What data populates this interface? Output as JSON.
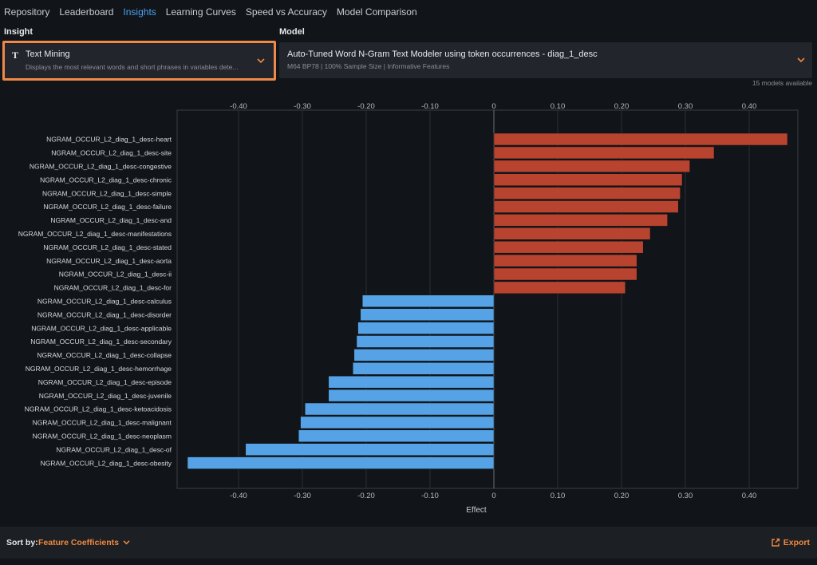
{
  "nav": {
    "items": [
      "Repository",
      "Leaderboard",
      "Insights",
      "Learning Curves",
      "Speed vs Accuracy",
      "Model Comparison"
    ],
    "active": "Insights"
  },
  "insight": {
    "label": "Insight",
    "title": "Text Mining",
    "description": "Displays the most relevant words and short phrases in variables dete...",
    "icon": "text-T-icon"
  },
  "model": {
    "label": "Model",
    "title": "Auto-Tuned Word N-Gram Text Modeler using token occurrences - diag_1_desc",
    "subtitle": "M64 BP78 | 100% Sample Size | Informative Features",
    "available": "15 models available"
  },
  "colors": {
    "positive": "#b8432f",
    "negative": "#55a3e6",
    "accent": "#f0883e",
    "active_tab": "#4aa3f0",
    "highlight_border": "#f08848"
  },
  "chart_data": {
    "type": "bar",
    "orientation": "horizontal",
    "xlabel": "Effect",
    "ylabel": "",
    "xlim": [
      -0.5,
      0.47
    ],
    "ticks": [
      -0.4,
      -0.3,
      -0.2,
      -0.1,
      0,
      0.1,
      0.2,
      0.3,
      0.4
    ],
    "tick_labels": [
      "-0.40",
      "-0.30",
      "-0.20",
      "-0.10",
      "0",
      "0.10",
      "0.20",
      "0.30",
      "0.40"
    ],
    "grid": true,
    "categories": [
      "NGRAM_OCCUR_L2_diag_1_desc-heart",
      "NGRAM_OCCUR_L2_diag_1_desc-site",
      "NGRAM_OCCUR_L2_diag_1_desc-congestive",
      "NGRAM_OCCUR_L2_diag_1_desc-chronic",
      "NGRAM_OCCUR_L2_diag_1_desc-simple",
      "NGRAM_OCCUR_L2_diag_1_desc-failure",
      "NGRAM_OCCUR_L2_diag_1_desc-and",
      "NGRAM_OCCUR_L2_diag_1_desc-manifestations",
      "NGRAM_OCCUR_L2_diag_1_desc-stated",
      "NGRAM_OCCUR_L2_diag_1_desc-aorta",
      "NGRAM_OCCUR_L2_diag_1_desc-ii",
      "NGRAM_OCCUR_L2_diag_1_desc-for",
      "NGRAM_OCCUR_L2_diag_1_desc-calculus",
      "NGRAM_OCCUR_L2_diag_1_desc-disorder",
      "NGRAM_OCCUR_L2_diag_1_desc-applicable",
      "NGRAM_OCCUR_L2_diag_1_desc-secondary",
      "NGRAM_OCCUR_L2_diag_1_desc-collapse",
      "NGRAM_OCCUR_L2_diag_1_desc-hemorrhage",
      "NGRAM_OCCUR_L2_diag_1_desc-episode",
      "NGRAM_OCCUR_L2_diag_1_desc-juvenile",
      "NGRAM_OCCUR_L2_diag_1_desc-ketoacidosis",
      "NGRAM_OCCUR_L2_diag_1_desc-malignant",
      "NGRAM_OCCUR_L2_diag_1_desc-neoplasm",
      "NGRAM_OCCUR_L2_diag_1_desc-of",
      "NGRAM_OCCUR_L2_diag_1_desc-obesity"
    ],
    "values": [
      0.46,
      0.345,
      0.307,
      0.295,
      0.292,
      0.289,
      0.272,
      0.245,
      0.234,
      0.224,
      0.224,
      0.206,
      -0.206,
      -0.209,
      -0.213,
      -0.215,
      -0.219,
      -0.221,
      -0.259,
      -0.259,
      -0.296,
      -0.303,
      -0.306,
      -0.389,
      -0.48
    ]
  },
  "footer": {
    "sort_label": "Sort by:",
    "sort_value": "Feature Coefficients",
    "export_label": "Export"
  }
}
